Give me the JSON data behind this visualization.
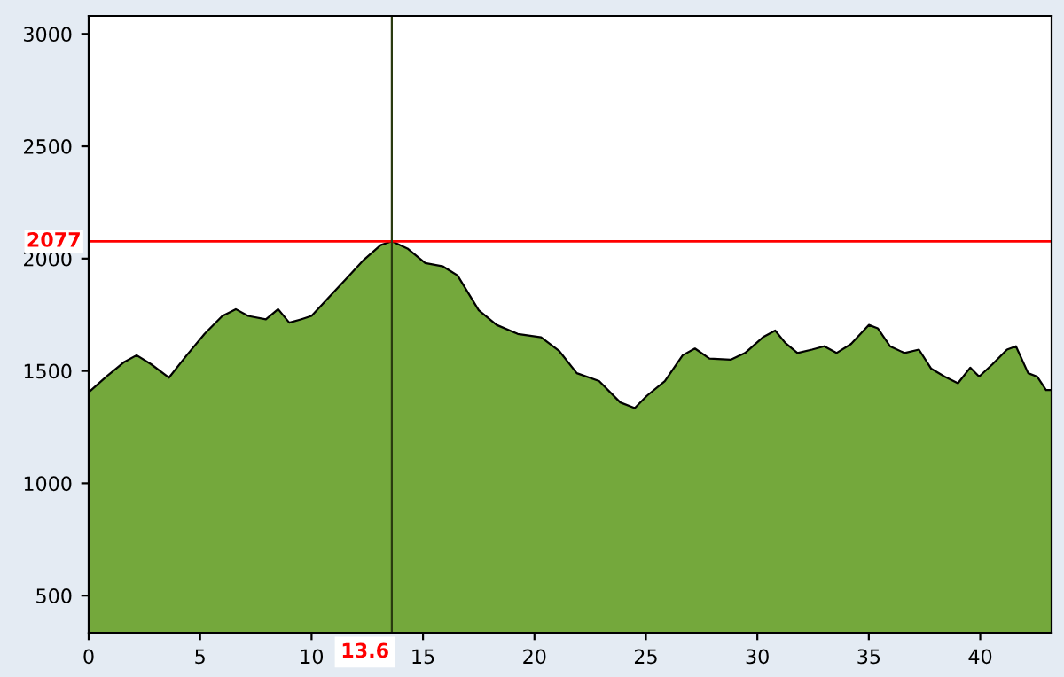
{
  "chart_data": {
    "type": "area",
    "x": [
      0,
      0.8,
      1.6,
      2.15,
      2.8,
      3.6,
      4.4,
      5.2,
      6,
      6.6,
      7.15,
      7.95,
      8.5,
      9,
      9.55,
      10,
      10.75,
      11.55,
      12.35,
      13.1,
      13.6,
      14.3,
      15.1,
      15.9,
      16.55,
      17.5,
      18.3,
      19.25,
      20.3,
      21.1,
      21.9,
      22.9,
      23.85,
      24.5,
      25.05,
      25.85,
      26.65,
      27.2,
      27.85,
      28.8,
      29.45,
      30.25,
      30.8,
      31.25,
      31.8,
      32.45,
      33,
      33.55,
      34.2,
      35,
      35.4,
      35.95,
      36.6,
      37.25,
      37.8,
      38.4,
      39,
      39.55,
      39.95,
      40.55,
      41.2,
      41.6,
      42.15,
      42.55,
      42.95,
      43.2
    ],
    "series": [
      {
        "color": "#74a83c",
        "values": [
          1405,
          1475,
          1540,
          1570,
          1530,
          1470,
          1570,
          1665,
          1745,
          1775,
          1745,
          1730,
          1775,
          1715,
          1730,
          1745,
          1825,
          1910,
          1995,
          2060,
          2077,
          2045,
          1980,
          1965,
          1925,
          1770,
          1705,
          1665,
          1650,
          1590,
          1490,
          1455,
          1360,
          1335,
          1390,
          1455,
          1570,
          1600,
          1555,
          1550,
          1580,
          1650,
          1680,
          1625,
          1580,
          1595,
          1610,
          1580,
          1620,
          1705,
          1690,
          1610,
          1580,
          1595,
          1510,
          1475,
          1445,
          1515,
          1475,
          1530,
          1595,
          1610,
          1490,
          1475,
          1415,
          1415
        ]
      }
    ],
    "xlim": [
      0,
      43.2
    ],
    "ylim": [
      335,
      3080
    ],
    "xticks": [
      0,
      5,
      10,
      15,
      20,
      25,
      30,
      35,
      40
    ],
    "yticks": [
      500,
      1000,
      1500,
      2000,
      2500,
      3000
    ],
    "ref_lines": [
      {
        "axis": "y",
        "value": 2077,
        "label": "2077",
        "color": "#ff0000"
      },
      {
        "axis": "x",
        "value": 13.6,
        "label": "13.6",
        "color": "#2a3a10"
      }
    ],
    "grid": false
  }
}
